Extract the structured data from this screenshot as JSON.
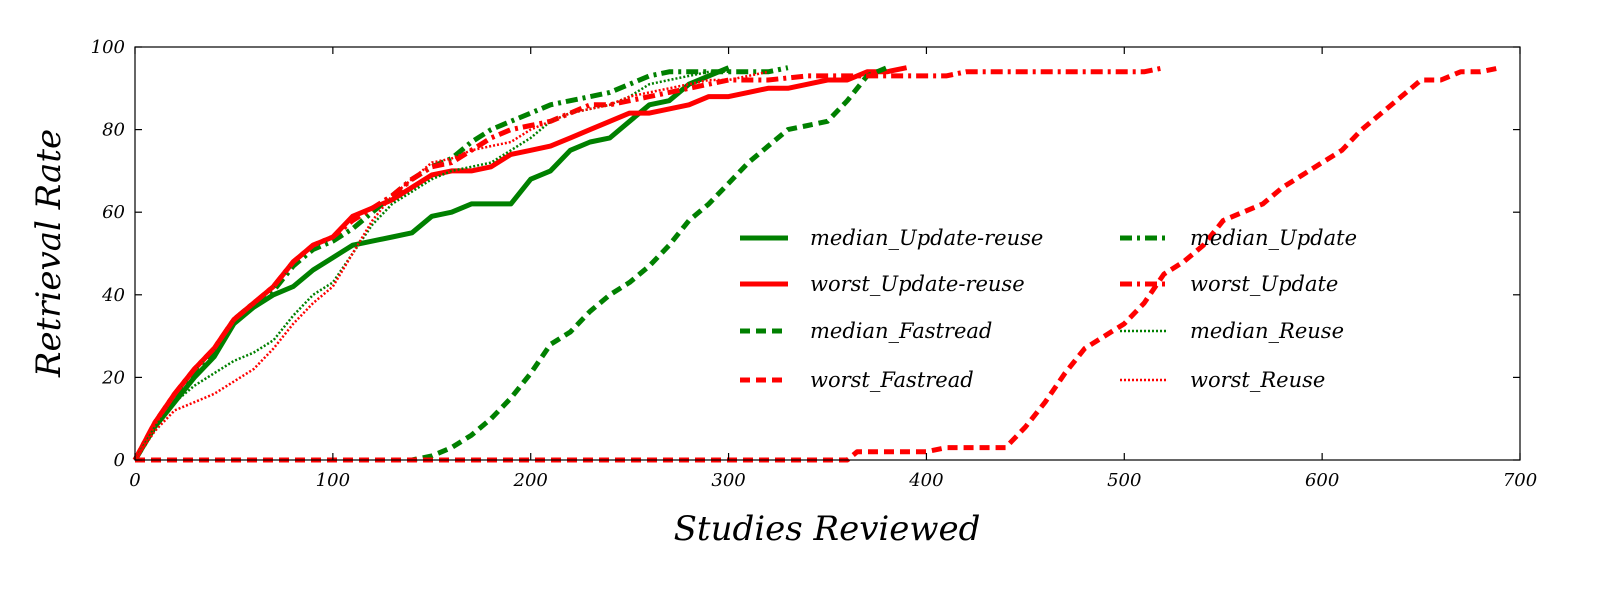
{
  "chart_data": {
    "type": "line",
    "xlabel": "Studies Reviewed",
    "ylabel": "Retrieval Rate",
    "xlim": [
      0,
      700
    ],
    "ylim": [
      0,
      100
    ],
    "xticks": [
      0,
      100,
      200,
      300,
      400,
      500,
      600,
      700
    ],
    "yticks": [
      0,
      20,
      40,
      60,
      80,
      100
    ],
    "grid": false,
    "legend_position": "center-right",
    "colors": {
      "green": "#008000",
      "red": "#ff0000"
    },
    "series": [
      {
        "name": "median_Update-reuse",
        "color": "#008000",
        "style": "solid",
        "width": 5,
        "x": [
          0,
          10,
          20,
          30,
          40,
          50,
          60,
          70,
          80,
          90,
          100,
          110,
          120,
          130,
          140,
          150,
          160,
          170,
          180,
          190,
          200,
          210,
          220,
          230,
          240,
          250,
          260,
          270,
          280,
          290,
          300
        ],
        "y": [
          0,
          8,
          14,
          20,
          25,
          33,
          37,
          40,
          42,
          46,
          49,
          52,
          53,
          54,
          55,
          59,
          60,
          62,
          62,
          62,
          68,
          70,
          75,
          77,
          78,
          82,
          86,
          87,
          91,
          93,
          95
        ]
      },
      {
        "name": "worst_Update-reuse",
        "color": "#ff0000",
        "style": "solid",
        "width": 5,
        "x": [
          0,
          10,
          20,
          30,
          40,
          50,
          60,
          70,
          80,
          90,
          100,
          110,
          120,
          130,
          140,
          150,
          160,
          170,
          180,
          190,
          200,
          210,
          220,
          230,
          240,
          250,
          260,
          270,
          280,
          290,
          300,
          310,
          320,
          330,
          340,
          350,
          360,
          370,
          380,
          390
        ],
        "y": [
          0,
          9,
          16,
          22,
          27,
          34,
          38,
          42,
          48,
          52,
          54,
          59,
          61,
          63,
          66,
          69,
          70,
          70,
          71,
          74,
          75,
          76,
          78,
          80,
          82,
          84,
          84,
          85,
          86,
          88,
          88,
          89,
          90,
          90,
          91,
          92,
          92,
          94,
          94,
          95
        ]
      },
      {
        "name": "median_Fastread",
        "color": "#008000",
        "style": "dashed",
        "width": 5,
        "x": [
          0,
          140,
          150,
          160,
          170,
          180,
          190,
          200,
          210,
          220,
          230,
          240,
          250,
          260,
          270,
          280,
          290,
          300,
          310,
          320,
          330,
          340,
          350,
          360,
          370,
          380
        ],
        "y": [
          0,
          0,
          1,
          3,
          6,
          10,
          15,
          21,
          28,
          31,
          36,
          40,
          43,
          47,
          52,
          58,
          62,
          67,
          72,
          76,
          80,
          81,
          82,
          87,
          93,
          95
        ]
      },
      {
        "name": "worst_Fastread",
        "color": "#ff0000",
        "style": "dashed",
        "width": 5,
        "x": [
          0,
          360,
          365,
          380,
          390,
          400,
          410,
          420,
          430,
          440,
          450,
          460,
          470,
          480,
          490,
          500,
          510,
          520,
          530,
          540,
          550,
          560,
          570,
          580,
          590,
          600,
          610,
          620,
          630,
          640,
          650,
          660,
          670,
          680,
          690
        ],
        "y": [
          0,
          0,
          2,
          2,
          2,
          2,
          3,
          3,
          3,
          3,
          8,
          14,
          21,
          27,
          30,
          33,
          38,
          45,
          48,
          52,
          58,
          60,
          62,
          66,
          69,
          72,
          75,
          80,
          84,
          88,
          92,
          92,
          94,
          94,
          95
        ]
      },
      {
        "name": "median_Update",
        "color": "#008000",
        "style": "dashdot",
        "width": 5,
        "x": [
          0,
          10,
          20,
          30,
          40,
          50,
          60,
          70,
          80,
          90,
          100,
          110,
          120,
          130,
          140,
          150,
          160,
          170,
          180,
          190,
          200,
          210,
          220,
          230,
          240,
          250,
          260,
          270,
          280,
          290,
          300,
          310,
          320,
          330
        ],
        "y": [
          0,
          8,
          15,
          21,
          26,
          34,
          38,
          41,
          47,
          51,
          53,
          56,
          60,
          64,
          68,
          71,
          73,
          77,
          80,
          82,
          84,
          86,
          87,
          88,
          89,
          91,
          93,
          94,
          94,
          94,
          94,
          94,
          94,
          95
        ]
      },
      {
        "name": "worst_Update",
        "color": "#ff0000",
        "style": "dashdot",
        "width": 5,
        "x": [
          0,
          10,
          20,
          30,
          40,
          50,
          60,
          70,
          80,
          90,
          100,
          110,
          120,
          130,
          140,
          150,
          160,
          170,
          180,
          190,
          200,
          210,
          220,
          230,
          240,
          250,
          260,
          270,
          280,
          290,
          300,
          320,
          340,
          360,
          380,
          400,
          410,
          420,
          440,
          460,
          480,
          500,
          510,
          520
        ],
        "y": [
          0,
          9,
          16,
          22,
          27,
          34,
          38,
          42,
          48,
          52,
          54,
          58,
          61,
          64,
          68,
          71,
          72,
          75,
          78,
          80,
          81,
          82,
          84,
          86,
          86,
          87,
          88,
          89,
          90,
          91,
          92,
          92,
          93,
          93,
          93,
          93,
          93,
          94,
          94,
          94,
          94,
          94,
          94,
          95
        ]
      },
      {
        "name": "median_Reuse",
        "color": "#008000",
        "style": "dotted",
        "width": 2.5,
        "x": [
          0,
          10,
          20,
          30,
          40,
          50,
          60,
          70,
          80,
          90,
          100,
          110,
          120,
          130,
          140,
          150,
          160,
          170,
          180,
          190,
          200,
          210,
          220,
          230,
          240,
          250,
          260,
          270,
          280,
          290,
          300
        ],
        "y": [
          0,
          8,
          14,
          18,
          21,
          24,
          26,
          29,
          35,
          40,
          43,
          50,
          57,
          62,
          65,
          68,
          70,
          71,
          72,
          75,
          78,
          82,
          84,
          85,
          86,
          88,
          91,
          92,
          93,
          94,
          94
        ]
      },
      {
        "name": "worst_Reuse",
        "color": "#ff0000",
        "style": "dotted",
        "width": 2.5,
        "x": [
          0,
          10,
          20,
          30,
          40,
          50,
          60,
          70,
          80,
          90,
          100,
          110,
          120,
          130,
          140,
          150,
          160,
          170,
          180,
          190,
          200,
          210,
          220,
          230,
          240,
          250,
          260,
          270,
          280,
          290,
          300,
          310,
          320
        ],
        "y": [
          0,
          7,
          12,
          14,
          16,
          19,
          22,
          27,
          33,
          38,
          42,
          50,
          58,
          64,
          68,
          72,
          73,
          75,
          76,
          77,
          80,
          82,
          84,
          85,
          86,
          88,
          89,
          90,
          91,
          92,
          92,
          93,
          94
        ]
      }
    ]
  }
}
